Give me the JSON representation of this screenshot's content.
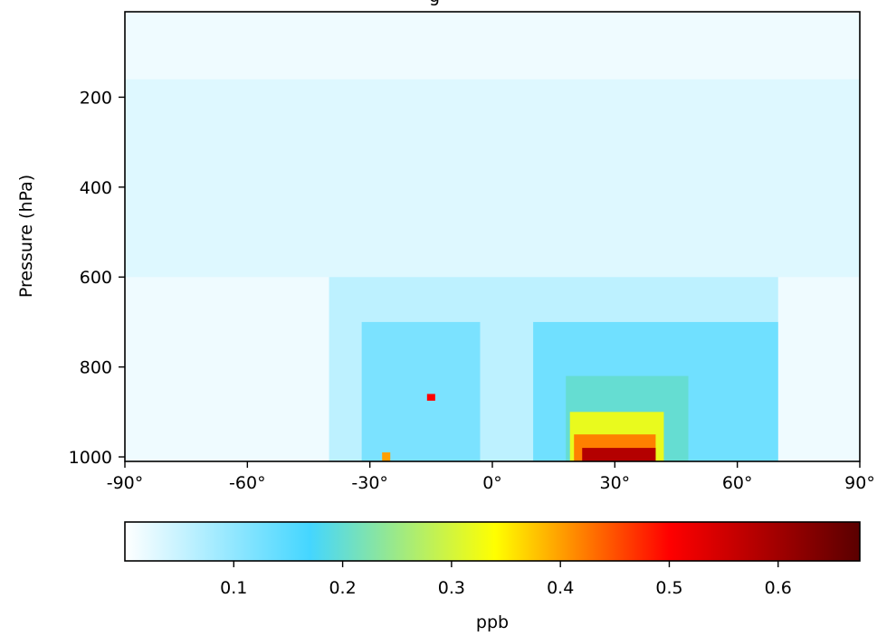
{
  "chart_data": {
    "type": "heatmap",
    "title": "g",
    "xlabel": "",
    "ylabel": "Pressure (hPa)",
    "x_ticks": [
      "-90°",
      "-60°",
      "-30°",
      "0°",
      "30°",
      "60°",
      "90°"
    ],
    "x_tick_values": [
      -90,
      -60,
      -30,
      0,
      30,
      60,
      90
    ],
    "xlim": [
      -90,
      90
    ],
    "y_ticks": [
      "200",
      "400",
      "600",
      "800",
      "1000"
    ],
    "y_tick_values": [
      200,
      400,
      600,
      800,
      1000
    ],
    "ylim": [
      1010,
      10
    ],
    "colorbar": {
      "label": "ppb",
      "ticks": [
        "0.1",
        "0.2",
        "0.3",
        "0.4",
        "0.5",
        "0.6"
      ],
      "tick_values": [
        0.1,
        0.2,
        0.3,
        0.4,
        0.5,
        0.6
      ],
      "range": [
        0.0,
        0.675
      ],
      "colormap": [
        {
          "v": 0.0,
          "color": "#ffffff"
        },
        {
          "v": 0.17,
          "color": "#44d6ff"
        },
        {
          "v": 0.34,
          "color": "#ffff00"
        },
        {
          "v": 0.5,
          "color": "#ff0000"
        },
        {
          "v": 0.675,
          "color": "#5a0000"
        }
      ]
    },
    "regions": [
      {
        "lat": [
          -90,
          90
        ],
        "p": [
          10,
          1010
        ],
        "value": 0.015
      },
      {
        "lat": [
          -90,
          90
        ],
        "p": [
          160,
          600
        ],
        "value": 0.03
      },
      {
        "lat": [
          -40,
          70
        ],
        "p": [
          600,
          1010
        ],
        "value": 0.06
      },
      {
        "lat": [
          -32,
          -3
        ],
        "p": [
          700,
          1010
        ],
        "value": 0.12
      },
      {
        "lat": [
          10,
          70
        ],
        "p": [
          700,
          1010
        ],
        "value": 0.13
      },
      {
        "lat": [
          18,
          48
        ],
        "p": [
          820,
          1010
        ],
        "value": 0.2
      },
      {
        "lat": [
          19,
          42
        ],
        "p": [
          900,
          1010
        ],
        "value": 0.32
      },
      {
        "lat": [
          20,
          40
        ],
        "p": [
          950,
          1010
        ],
        "value": 0.42
      },
      {
        "lat": [
          22,
          40
        ],
        "p": [
          980,
          1010
        ],
        "value": 0.58
      },
      {
        "lat": [
          -16,
          -14
        ],
        "p": [
          860,
          875
        ],
        "value": 0.5
      },
      {
        "lat": [
          -27,
          -25
        ],
        "p": [
          990,
          1010
        ],
        "value": 0.4
      }
    ]
  }
}
